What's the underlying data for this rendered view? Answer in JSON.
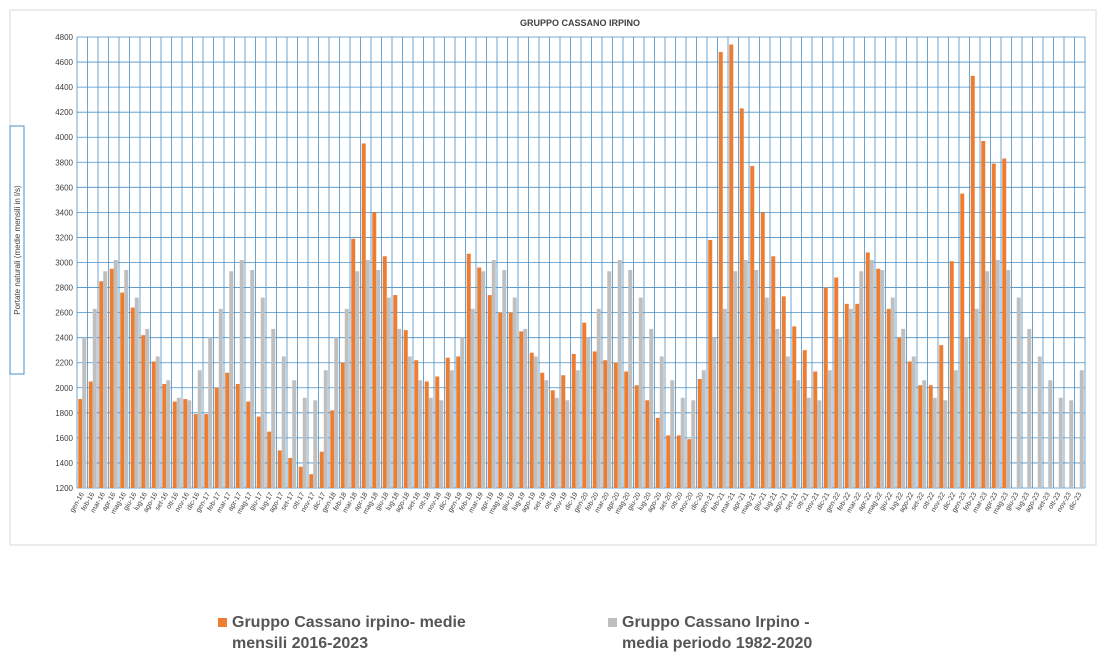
{
  "chart_data": {
    "type": "bar",
    "title": "GRUPPO CASSANO IRPINO",
    "y_label": "Portate naturali (medie mensili in l/s)",
    "categories": [
      "gen-16",
      "feb-16",
      "mar-16",
      "apr-16",
      "mag-16",
      "giu-16",
      "lug-16",
      "ago-16",
      "set-16",
      "ott-16",
      "nov-16",
      "dic-16",
      "gen-17",
      "feb-17",
      "mar-17",
      "apr-17",
      "mag-17",
      "giu-17",
      "lug-17",
      "ago-17",
      "set-17",
      "ott-17",
      "nov-17",
      "dic-17",
      "gen-18",
      "feb-18",
      "mar-18",
      "apr-18",
      "mag-18",
      "giu-18",
      "lug-18",
      "ago-18",
      "set-18",
      "ott-18",
      "nov-18",
      "dic-18",
      "gen-19",
      "feb-19",
      "mar-19",
      "apr-19",
      "mag-19",
      "giu-19",
      "lug-19",
      "ago-19",
      "set-19",
      "ott-19",
      "nov-19",
      "dic-19",
      "gen-20",
      "feb-20",
      "mar-20",
      "apr-20",
      "mag-20",
      "giu-20",
      "lug-20",
      "ago-20",
      "set-20",
      "ott-20",
      "nov-20",
      "dic-20",
      "gen-21",
      "feb-21",
      "mar-21",
      "apr-21",
      "mag-21",
      "giu-21",
      "lug-21",
      "ago-21",
      "set-21",
      "ott-21",
      "nov-21",
      "dic-21",
      "gen-22",
      "feb-22",
      "mar-22",
      "apr-22",
      "mag-22",
      "giu-22",
      "lug-22",
      "ago-22",
      "set-22",
      "ott-22",
      "nov-22",
      "dic-22",
      "gen-23",
      "feb-23",
      "mar-23",
      "apr-23",
      "mag-23",
      "giu-23",
      "lug-23",
      "ago-23",
      "set-23",
      "ott-23",
      "nov-23",
      "dic-23"
    ],
    "series": [
      {
        "name": "Gruppo Cassano irpino- medie mensili  2016-2023",
        "color": "#ed7d31",
        "values": [
          1910,
          2050,
          2850,
          2950,
          2760,
          2640,
          2420,
          2210,
          2030,
          1890,
          1910,
          1790,
          1790,
          2000,
          2120,
          2030,
          1890,
          1770,
          1650,
          1500,
          1440,
          1370,
          1310,
          1490,
          1820,
          2200,
          3190,
          3950,
          3400,
          3050,
          2740,
          2460,
          2220,
          2050,
          2090,
          2240,
          2250,
          3070,
          2960,
          2740,
          2600,
          2600,
          2450,
          2280,
          2120,
          1980,
          2100,
          2270,
          2520,
          2290,
          2220,
          2200,
          2130,
          2020,
          1900,
          1760,
          1620,
          1620,
          1590,
          2070,
          3180,
          4680,
          4740,
          4230,
          3770,
          3400,
          3050,
          2730,
          2490,
          2300,
          2130,
          2800,
          2880,
          2670,
          2670,
          3080,
          2950,
          2630,
          2400,
          2210,
          2020,
          2020,
          2340,
          3010,
          3550,
          4490,
          3970,
          3790,
          3830,
          null,
          null,
          null,
          null,
          null,
          null,
          null
        ]
      },
      {
        "name": "Gruppo Cassano Irpino - media periodo 1982-2020",
        "color": "#bfbfbf",
        "values": [
          2400,
          2630,
          2930,
          3020,
          2940,
          2720,
          2470,
          2250,
          2060,
          1920,
          1900,
          2140,
          2400,
          2630,
          2930,
          3020,
          2940,
          2720,
          2470,
          2250,
          2060,
          1920,
          1900,
          2140,
          2400,
          2630,
          2930,
          3020,
          2940,
          2720,
          2470,
          2250,
          2060,
          1920,
          1900,
          2140,
          2400,
          2630,
          2930,
          3020,
          2940,
          2720,
          2470,
          2250,
          2060,
          1920,
          1900,
          2140,
          2400,
          2630,
          2930,
          3020,
          2940,
          2720,
          2470,
          2250,
          2060,
          1920,
          1900,
          2140,
          2400,
          2630,
          2930,
          3020,
          2940,
          2720,
          2470,
          2250,
          2060,
          1920,
          1900,
          2140,
          2400,
          2630,
          2930,
          3020,
          2940,
          2720,
          2470,
          2250,
          2060,
          1920,
          1900,
          2140,
          2400,
          2630,
          2930,
          3020,
          2940,
          2720,
          2470,
          2250,
          2060,
          1920,
          1900,
          2140
        ]
      }
    ],
    "ylim": [
      1200,
      4800
    ],
    "yticks": [
      1200,
      1400,
      1600,
      1800,
      2000,
      2200,
      2400,
      2600,
      2800,
      3000,
      3200,
      3400,
      3600,
      3800,
      4000,
      4200,
      4400,
      4600,
      4800
    ],
    "grid": true
  }
}
